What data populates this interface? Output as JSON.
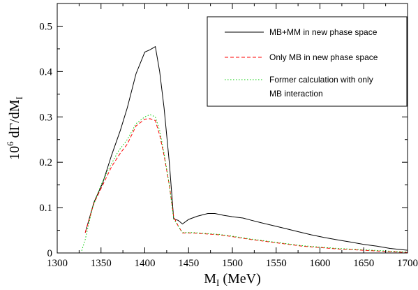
{
  "chart_data": {
    "type": "line",
    "xlabel": {
      "main": "M",
      "sub": "I",
      "rest": " (MeV)"
    },
    "ylabel": {
      "pre": "10",
      "sup": "6",
      "mid": " dΓ/dM",
      "sub": "I"
    },
    "xlim": [
      1300,
      1700
    ],
    "ylim": [
      0,
      0.55
    ],
    "xticks": [
      1300,
      1350,
      1400,
      1450,
      1500,
      1550,
      1600,
      1650,
      1700
    ],
    "xtick_labels": [
      "1300",
      "1350",
      "1400",
      "1450",
      "1500",
      "1550",
      "1600",
      "1650",
      "1700"
    ],
    "yticks": [
      0,
      0.1,
      0.2,
      0.3,
      0.4,
      0.5
    ],
    "ytick_labels": [
      "0",
      "0.1",
      "0.2",
      "0.3",
      "0.4",
      "0.5"
    ],
    "grid": false,
    "legend_position": "top-right",
    "series": [
      {
        "name": "MB+MM in new phase space",
        "color": "#000000",
        "dash": "solid",
        "x": [
          1332,
          1342,
          1352,
          1362,
          1372,
          1380,
          1390,
          1400,
          1406,
          1412,
          1417,
          1422,
          1428,
          1433,
          1438,
          1443,
          1450,
          1460,
          1472,
          1480,
          1490,
          1500,
          1512,
          1522,
          1532,
          1545,
          1560,
          1575,
          1590,
          1605,
          1620,
          1635,
          1650,
          1665,
          1680,
          1700
        ],
        "y": [
          0.045,
          0.112,
          0.155,
          0.215,
          0.27,
          0.32,
          0.395,
          0.443,
          0.448,
          0.455,
          0.4,
          0.32,
          0.2,
          0.075,
          0.072,
          0.064,
          0.074,
          0.081,
          0.087,
          0.087,
          0.083,
          0.08,
          0.077,
          0.072,
          0.067,
          0.061,
          0.054,
          0.047,
          0.04,
          0.034,
          0.029,
          0.024,
          0.019,
          0.015,
          0.01,
          0.006
        ]
      },
      {
        "name": "Only MB in new phase space",
        "color": "#ff0000",
        "dash": "dashed",
        "x": [
          1332,
          1342,
          1352,
          1362,
          1372,
          1380,
          1390,
          1400,
          1406,
          1412,
          1417,
          1422,
          1428,
          1433,
          1438,
          1443,
          1455,
          1470,
          1485,
          1500,
          1520,
          1540,
          1560,
          1580,
          1600,
          1620,
          1640,
          1660,
          1680,
          1700
        ],
        "y": [
          0.045,
          0.11,
          0.15,
          0.19,
          0.22,
          0.24,
          0.28,
          0.295,
          0.296,
          0.292,
          0.26,
          0.215,
          0.15,
          0.08,
          0.06,
          0.044,
          0.044,
          0.042,
          0.04,
          0.036,
          0.03,
          0.025,
          0.02,
          0.015,
          0.012,
          0.009,
          0.007,
          0.005,
          0.003,
          0.001
        ]
      },
      {
        "name": "Former calculation with only MB interaction",
        "color": "#00cc00",
        "dash": "dotted",
        "x": [
          1328,
          1332,
          1340,
          1350,
          1360,
          1370,
          1380,
          1390,
          1400,
          1406,
          1412,
          1417,
          1422,
          1428,
          1433,
          1438,
          1443,
          1455,
          1470,
          1485,
          1500,
          1520,
          1540,
          1560,
          1580,
          1600,
          1620,
          1640,
          1660,
          1680,
          1700
        ],
        "y": [
          0.005,
          0.03,
          0.098,
          0.15,
          0.19,
          0.225,
          0.25,
          0.285,
          0.3,
          0.305,
          0.3,
          0.27,
          0.22,
          0.15,
          0.075,
          0.06,
          0.045,
          0.045,
          0.043,
          0.041,
          0.037,
          0.031,
          0.026,
          0.021,
          0.016,
          0.013,
          0.01,
          0.008,
          0.006,
          0.004,
          0.002
        ]
      }
    ],
    "legend_entries": [
      {
        "series": 0,
        "lines": [
          "MB+MM in new phase space"
        ]
      },
      {
        "series": 1,
        "lines": [
          "Only MB in new phase space"
        ]
      },
      {
        "series": 2,
        "lines": [
          "Former calculation with only",
          "MB interaction"
        ]
      }
    ]
  }
}
